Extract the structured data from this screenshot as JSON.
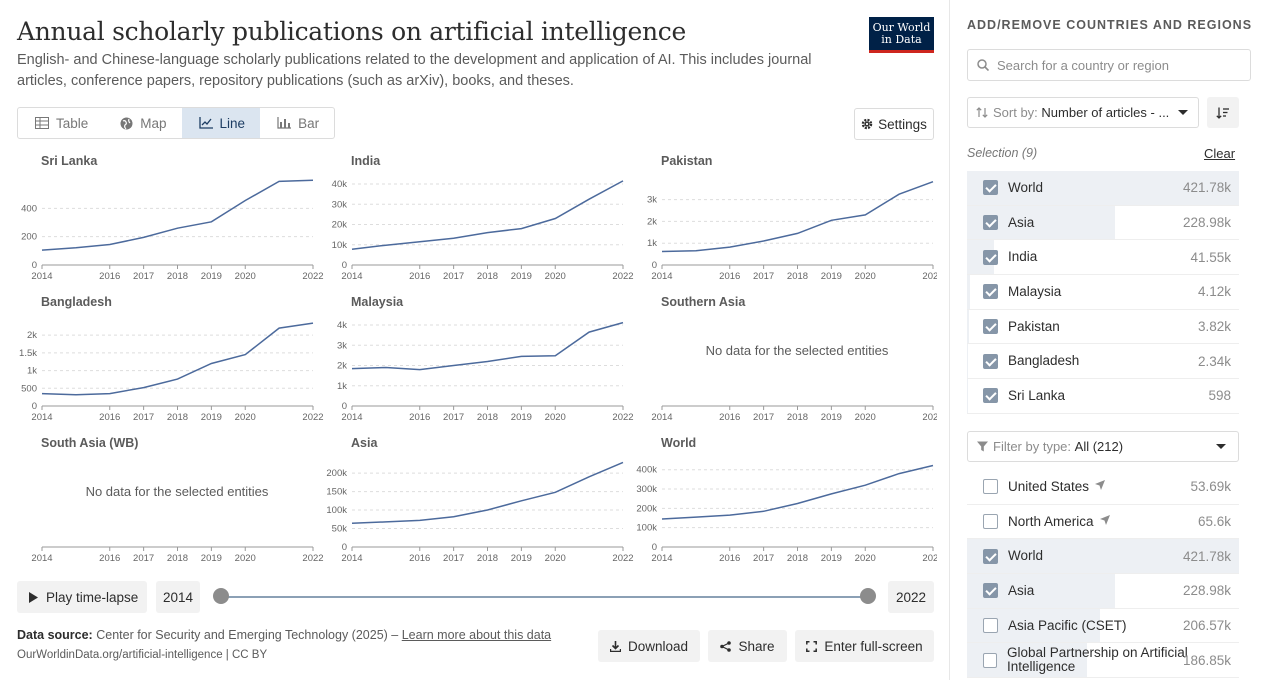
{
  "header": {
    "title": "Annual scholarly publications on artificial intelligence",
    "subtitle": "English- and Chinese-language scholarly publications related to the development and application of AI. This includes journal articles, conference papers, repository publications (such as arXiv), books, and theses.",
    "logo_line1": "Our World",
    "logo_line2": "in Data"
  },
  "tabs": [
    {
      "label": "Table",
      "icon": "table-icon",
      "active": false
    },
    {
      "label": "Map",
      "icon": "globe-icon",
      "active": false
    },
    {
      "label": "Line",
      "icon": "line-chart-icon",
      "active": true
    },
    {
      "label": "Bar",
      "icon": "bar-chart-icon",
      "active": false
    }
  ],
  "settings_label": "Settings",
  "no_data_text": "No data for the selected entities",
  "chart_data": [
    {
      "type": "line",
      "title": "Sri Lanka",
      "x": [
        2014,
        2015,
        2016,
        2017,
        2018,
        2019,
        2020,
        2021,
        2022
      ],
      "values": [
        105,
        122,
        145,
        195,
        260,
        305,
        455,
        590,
        598
      ],
      "ylim": [
        0,
        600
      ],
      "yticks": [
        0,
        200,
        400
      ],
      "ytick_labels": [
        "0",
        "200",
        "400"
      ],
      "xtick_labels": [
        "2014",
        "2016",
        "2017",
        "2018",
        "2019",
        "2020",
        "2022"
      ]
    },
    {
      "type": "line",
      "title": "India",
      "x": [
        2014,
        2015,
        2016,
        2017,
        2018,
        2019,
        2020,
        2021,
        2022
      ],
      "values": [
        7800,
        9800,
        11500,
        13200,
        16000,
        18000,
        23000,
        32500,
        41550
      ],
      "ylim": [
        0,
        42000
      ],
      "yticks": [
        0,
        10000,
        20000,
        30000,
        40000
      ],
      "ytick_labels": [
        "0",
        "10k",
        "20k",
        "30k",
        "40k"
      ],
      "xtick_labels": [
        "2014",
        "2016",
        "2017",
        "2018",
        "2019",
        "2020",
        "2022"
      ]
    },
    {
      "type": "line",
      "title": "Pakistan",
      "x": [
        2014,
        2015,
        2016,
        2017,
        2018,
        2019,
        2020,
        2021,
        2022
      ],
      "values": [
        620,
        650,
        820,
        1100,
        1450,
        2050,
        2300,
        3250,
        3820
      ],
      "ylim": [
        0,
        3900
      ],
      "yticks": [
        0,
        1000,
        2000,
        3000
      ],
      "ytick_labels": [
        "0",
        "1k",
        "2k",
        "3k"
      ],
      "xtick_labels": [
        "2014",
        "2016",
        "2017",
        "2018",
        "2019",
        "2020",
        "2022"
      ]
    },
    {
      "type": "line",
      "title": "Bangladesh",
      "x": [
        2014,
        2015,
        2016,
        2017,
        2018,
        2019,
        2020,
        2021,
        2022
      ],
      "values": [
        350,
        320,
        350,
        520,
        760,
        1200,
        1450,
        2200,
        2340
      ],
      "ylim": [
        0,
        2400
      ],
      "yticks": [
        0,
        500,
        1000,
        1500,
        2000
      ],
      "ytick_labels": [
        "0",
        "500",
        "1k",
        "1.5k",
        "2k"
      ],
      "xtick_labels": [
        "2014",
        "2016",
        "2017",
        "2018",
        "2019",
        "2020",
        "2022"
      ]
    },
    {
      "type": "line",
      "title": "Malaysia",
      "x": [
        2014,
        2015,
        2016,
        2017,
        2018,
        2019,
        2020,
        2021,
        2022
      ],
      "values": [
        1850,
        1900,
        1800,
        2000,
        2200,
        2450,
        2480,
        3650,
        4120
      ],
      "ylim": [
        0,
        4200
      ],
      "yticks": [
        0,
        1000,
        2000,
        3000,
        4000
      ],
      "ytick_labels": [
        "0",
        "1k",
        "2k",
        "3k",
        "4k"
      ],
      "xtick_labels": [
        "2014",
        "2016",
        "2017",
        "2018",
        "2019",
        "2020",
        "2022"
      ]
    },
    {
      "type": "line",
      "title": "Southern Asia",
      "x": [],
      "values": [],
      "no_data": true,
      "xtick_labels": [
        "2014",
        "2016",
        "2017",
        "2018",
        "2019",
        "2020",
        "2022"
      ]
    },
    {
      "type": "line",
      "title": "South Asia (WB)",
      "x": [],
      "values": [],
      "no_data": true,
      "xtick_labels": [
        "2014",
        "2016",
        "2017",
        "2018",
        "2019",
        "2020",
        "2022"
      ]
    },
    {
      "type": "line",
      "title": "Asia",
      "x": [
        2014,
        2015,
        2016,
        2017,
        2018,
        2019,
        2020,
        2021,
        2022
      ],
      "values": [
        64000,
        68000,
        72000,
        82000,
        100000,
        125000,
        148000,
        190000,
        228980
      ],
      "ylim": [
        0,
        230000
      ],
      "yticks": [
        0,
        50000,
        100000,
        150000,
        200000
      ],
      "ytick_labels": [
        "0",
        "50k",
        "100k",
        "150k",
        "200k"
      ],
      "xtick_labels": [
        "2014",
        "2016",
        "2017",
        "2018",
        "2019",
        "2020",
        "2022"
      ]
    },
    {
      "type": "line",
      "title": "World",
      "x": [
        2014,
        2015,
        2016,
        2017,
        2018,
        2019,
        2020,
        2021,
        2022
      ],
      "values": [
        145000,
        155000,
        165000,
        185000,
        225000,
        275000,
        320000,
        380000,
        421780
      ],
      "ylim": [
        0,
        440000
      ],
      "yticks": [
        0,
        100000,
        200000,
        300000,
        400000
      ],
      "ytick_labels": [
        "0",
        "100k",
        "200k",
        "300k",
        "400k"
      ],
      "xtick_labels": [
        "2014",
        "2016",
        "2017",
        "2018",
        "2019",
        "2020",
        "2022"
      ]
    }
  ],
  "timeline": {
    "play_label": "Play time-lapse",
    "start_year": "2014",
    "end_year": "2022"
  },
  "footer": {
    "source_label": "Data source:",
    "source_text": "Center for Security and Emerging Technology (2025) –",
    "learn_more": "Learn more about this data",
    "credit": "OurWorldinData.org/artificial-intelligence | CC BY",
    "download_label": "Download",
    "share_label": "Share",
    "fullscreen_label": "Enter full-screen"
  },
  "sidebar": {
    "title": "ADD/REMOVE COUNTRIES AND REGIONS",
    "search_placeholder": "Search for a country or region",
    "sort_label": "Sort by:",
    "sort_value": "Number of articles - ...",
    "selection_label": "Selection (9)",
    "clear_label": "Clear",
    "filter_label": "Filter by type:",
    "filter_value": "All (212)",
    "selected": [
      {
        "name": "World",
        "value": "421.78k",
        "share": 1.0,
        "checked": true
      },
      {
        "name": "Asia",
        "value": "228.98k",
        "share": 0.543,
        "checked": true
      },
      {
        "name": "India",
        "value": "41.55k",
        "share": 0.0985,
        "checked": true
      },
      {
        "name": "Malaysia",
        "value": "4.12k",
        "share": 0.0098,
        "checked": true
      },
      {
        "name": "Pakistan",
        "value": "3.82k",
        "share": 0.0091,
        "checked": true
      },
      {
        "name": "Bangladesh",
        "value": "2.34k",
        "share": 0.0055,
        "checked": true
      },
      {
        "name": "Sri Lanka",
        "value": "598",
        "share": 0.0014,
        "checked": true
      }
    ],
    "all": [
      {
        "name": "United States",
        "value": "53.69k",
        "share": 0,
        "checked": false,
        "arrow": true
      },
      {
        "name": "North America",
        "value": "65.6k",
        "share": 0,
        "checked": false,
        "arrow": true
      },
      {
        "name": "World",
        "value": "421.78k",
        "share": 1.0,
        "checked": true
      },
      {
        "name": "Asia",
        "value": "228.98k",
        "share": 0.543,
        "checked": true
      },
      {
        "name": "Asia Pacific (CSET)",
        "value": "206.57k",
        "share": 0.49,
        "checked": false
      },
      {
        "name": "Global Partnership on Artificial Intelligence",
        "value": "186.85k",
        "share": 0.443,
        "checked": false
      }
    ]
  }
}
